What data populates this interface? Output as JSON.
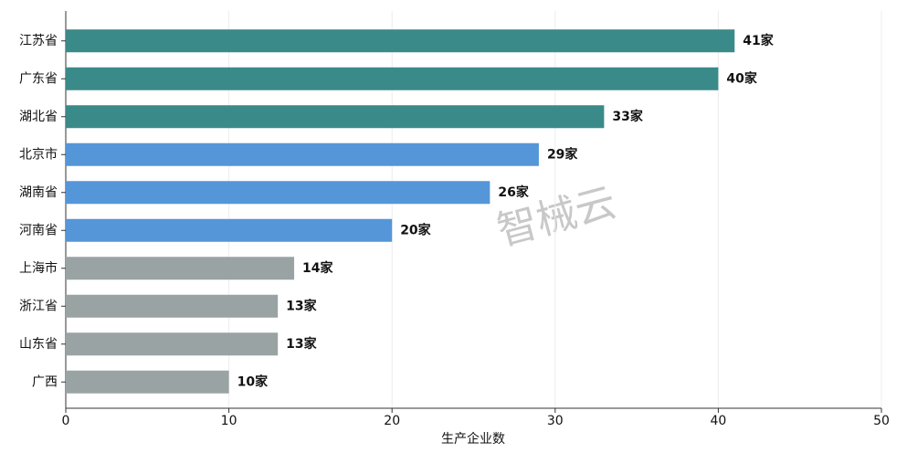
{
  "chart_data": {
    "type": "hbar",
    "x_label": "生产企业数",
    "categories": [
      "江苏省",
      "广东省",
      "湖北省",
      "北京市",
      "湖南省",
      "河南省",
      "上海市",
      "浙江省",
      "山东省",
      "广西"
    ],
    "values": [
      41,
      40,
      33,
      29,
      26,
      20,
      14,
      13,
      13,
      10
    ],
    "value_labels": [
      "41家",
      "40家",
      "33家",
      "29家",
      "26家",
      "20家",
      "14家",
      "13家",
      "13家",
      "10家"
    ],
    "colors": [
      "#3a8a89",
      "#3a8a89",
      "#3a8a89",
      "#5596d8",
      "#5596d8",
      "#5596d8",
      "#99a3a4",
      "#99a3a4",
      "#99a3a4",
      "#99a3a4"
    ],
    "xlim": [
      0,
      50
    ],
    "xticks": [
      0,
      10,
      20,
      30,
      40,
      50
    ],
    "grid": true,
    "watermark": "智械云"
  }
}
